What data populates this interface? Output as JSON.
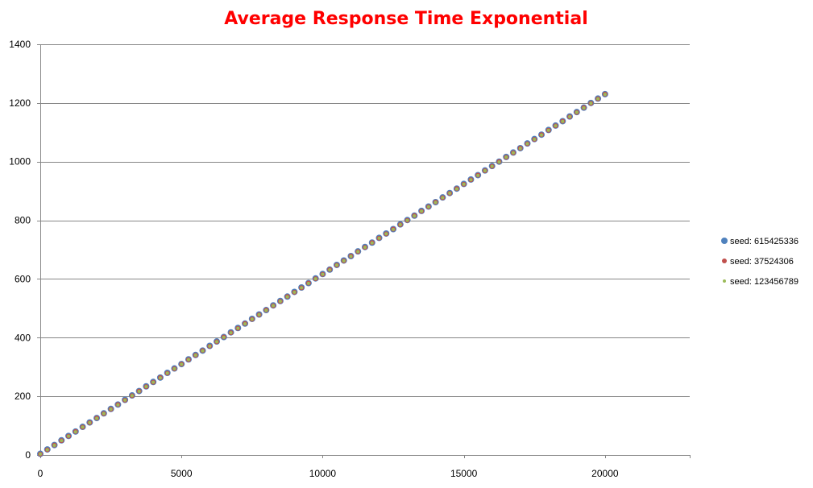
{
  "chart_data": {
    "type": "scatter",
    "title": "Average Response Time Exponential",
    "title_color": "#ff0000",
    "xlabel": "",
    "ylabel": "",
    "xlim": [
      0,
      23000
    ],
    "ylim": [
      0,
      1400
    ],
    "xticks": [
      0,
      5000,
      10000,
      15000,
      20000
    ],
    "yticks": [
      0,
      200,
      400,
      600,
      800,
      1000,
      1200,
      1400
    ],
    "grid": "horizontal",
    "legend_position": "right",
    "series": [
      {
        "name": "seed: 615425336",
        "color": "#4f81bd",
        "x": [
          0,
          250,
          500,
          750,
          1000,
          1250,
          1500,
          1750,
          2000,
          2250,
          2500,
          2750,
          3000,
          3250,
          3500,
          3750,
          4000,
          4250,
          4500,
          4750,
          5000,
          5250,
          5500,
          5750,
          6000,
          6250,
          6500,
          6750,
          7000,
          7250,
          7500,
          7750,
          8000,
          8250,
          8500,
          8750,
          9000,
          9250,
          9500,
          9750,
          10000,
          10250,
          10500,
          10750,
          11000,
          11250,
          11500,
          11750,
          12000,
          12250,
          12500,
          12750,
          13000,
          13250,
          13500,
          13750,
          14000,
          14250,
          14500,
          14750,
          15000,
          15250,
          15500,
          15750,
          16000,
          16250,
          16500,
          16750,
          17000,
          17250,
          17500,
          17750,
          18000,
          18250,
          18500,
          18750,
          19000,
          19250,
          19500,
          19750,
          20000
        ],
        "y": [
          4,
          19,
          34,
          50,
          65,
          80,
          96,
          111,
          126,
          142,
          157,
          172,
          188,
          203,
          218,
          234,
          249,
          264,
          280,
          295,
          310,
          326,
          341,
          356,
          372,
          387,
          402,
          418,
          433,
          448,
          464,
          479,
          494,
          510,
          525,
          540,
          556,
          571,
          586,
          602,
          617,
          632,
          648,
          663,
          678,
          694,
          709,
          724,
          740,
          755,
          770,
          786,
          801,
          816,
          832,
          847,
          862,
          878,
          893,
          908,
          924,
          939,
          954,
          970,
          985,
          1000,
          1016,
          1031,
          1046,
          1062,
          1077,
          1092,
          1108,
          1123,
          1138,
          1154,
          1169,
          1184,
          1200,
          1215,
          1230
        ]
      },
      {
        "name": "seed: 37524306",
        "color": "#c0504d",
        "x": [
          0,
          250,
          500,
          750,
          1000,
          1250,
          1500,
          1750,
          2000,
          2250,
          2500,
          2750,
          3000,
          3250,
          3500,
          3750,
          4000,
          4250,
          4500,
          4750,
          5000,
          5250,
          5500,
          5750,
          6000,
          6250,
          6500,
          6750,
          7000,
          7250,
          7500,
          7750,
          8000,
          8250,
          8500,
          8750,
          9000,
          9250,
          9500,
          9750,
          10000,
          10250,
          10500,
          10750,
          11000,
          11250,
          11500,
          11750,
          12000,
          12250,
          12500,
          12750,
          13000,
          13250,
          13500,
          13750,
          14000,
          14250,
          14500,
          14750,
          15000,
          15250,
          15500,
          15750,
          16000,
          16250,
          16500,
          16750,
          17000,
          17250,
          17500,
          17750,
          18000,
          18250,
          18500,
          18750,
          19000,
          19250,
          19500,
          19750,
          20000
        ],
        "y": [
          3,
          18,
          34,
          49,
          64,
          80,
          95,
          110,
          126,
          141,
          156,
          172,
          187,
          202,
          218,
          233,
          248,
          264,
          279,
          294,
          310,
          325,
          340,
          356,
          371,
          386,
          402,
          417,
          432,
          448,
          463,
          478,
          494,
          509,
          524,
          540,
          555,
          570,
          586,
          601,
          616,
          632,
          647,
          662,
          678,
          693,
          708,
          724,
          739,
          754,
          770,
          785,
          800,
          816,
          831,
          846,
          862,
          877,
          892,
          908,
          923,
          938,
          954,
          969,
          984,
          1000,
          1015,
          1030,
          1046,
          1061,
          1076,
          1092,
          1107,
          1122,
          1138,
          1153,
          1168,
          1184,
          1199,
          1214,
          1230
        ]
      },
      {
        "name": "seed: 123456789",
        "color": "#9bbb59",
        "x": [
          0,
          250,
          500,
          750,
          1000,
          1250,
          1500,
          1750,
          2000,
          2250,
          2500,
          2750,
          3000,
          3250,
          3500,
          3750,
          4000,
          4250,
          4500,
          4750,
          5000,
          5250,
          5500,
          5750,
          6000,
          6250,
          6500,
          6750,
          7000,
          7250,
          7500,
          7750,
          8000,
          8250,
          8500,
          8750,
          9000,
          9250,
          9500,
          9750,
          10000,
          10250,
          10500,
          10750,
          11000,
          11250,
          11500,
          11750,
          12000,
          12250,
          12500,
          12750,
          13000,
          13250,
          13500,
          13750,
          14000,
          14250,
          14500,
          14750,
          15000,
          15250,
          15500,
          15750,
          16000,
          16250,
          16500,
          16750,
          17000,
          17250,
          17500,
          17750,
          18000,
          18250,
          18500,
          18750,
          19000,
          19250,
          19500,
          19750,
          20000
        ],
        "y": [
          3,
          18,
          33,
          49,
          64,
          79,
          95,
          110,
          125,
          141,
          156,
          171,
          187,
          202,
          217,
          233,
          248,
          263,
          279,
          294,
          309,
          325,
          340,
          355,
          371,
          386,
          401,
          417,
          432,
          447,
          463,
          478,
          493,
          509,
          524,
          539,
          555,
          570,
          585,
          601,
          616,
          631,
          647,
          662,
          677,
          693,
          708,
          723,
          739,
          754,
          769,
          785,
          800,
          815,
          831,
          846,
          861,
          877,
          892,
          907,
          923,
          938,
          953,
          969,
          984,
          999,
          1015,
          1030,
          1045,
          1061,
          1076,
          1091,
          1107,
          1122,
          1137,
          1153,
          1168,
          1183,
          1199,
          1214,
          1229
        ]
      }
    ]
  },
  "colors": {
    "gridline": "#868686",
    "axis": "#868686",
    "background": "#ffffff"
  }
}
